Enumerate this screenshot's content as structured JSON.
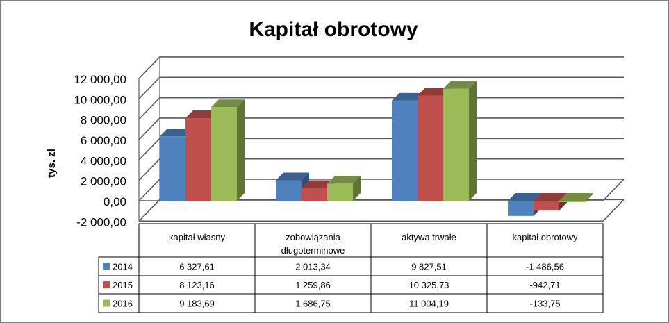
{
  "chart_data": {
    "type": "bar",
    "title": "Kapitał obrotowy",
    "ylabel": "tys. zł",
    "xlabel": "",
    "categories": [
      [
        "kapitał własny"
      ],
      [
        "zobowiązania",
        "długoterminowe"
      ],
      [
        "aktywa trwałe"
      ],
      [
        "kapitał obrotowy"
      ]
    ],
    "series": [
      {
        "name": "2014",
        "color": "#4f81bd",
        "values": [
          6327.61,
          2013.34,
          9827.51,
          -1486.56
        ],
        "labels": [
          "6 327,61",
          "2 013,34",
          "9 827,51",
          "-1 486,56"
        ]
      },
      {
        "name": "2015",
        "color": "#c0504d",
        "values": [
          8123.16,
          1259.86,
          10325.73,
          -942.71
        ],
        "labels": [
          "8 123,16",
          "1 259,86",
          "10 325,73",
          "-942,71"
        ]
      },
      {
        "name": "2016",
        "color": "#9bbb59",
        "values": [
          9183.69,
          1686.75,
          11004.19,
          -133.75
        ],
        "labels": [
          "9 183,69",
          "1 686,75",
          "11 004,19",
          "-133,75"
        ]
      }
    ],
    "ylim": [
      -2000,
      12000
    ],
    "yticks": [
      -2000,
      0,
      2000,
      4000,
      6000,
      8000,
      10000,
      12000
    ],
    "ytick_labels": [
      "-2 000,00",
      "0,00",
      "2 000,00",
      "4 000,00",
      "6 000,00",
      "8 000,00",
      "10 000,00",
      "12 000,00"
    ],
    "grid": true,
    "legend": "data-table"
  }
}
